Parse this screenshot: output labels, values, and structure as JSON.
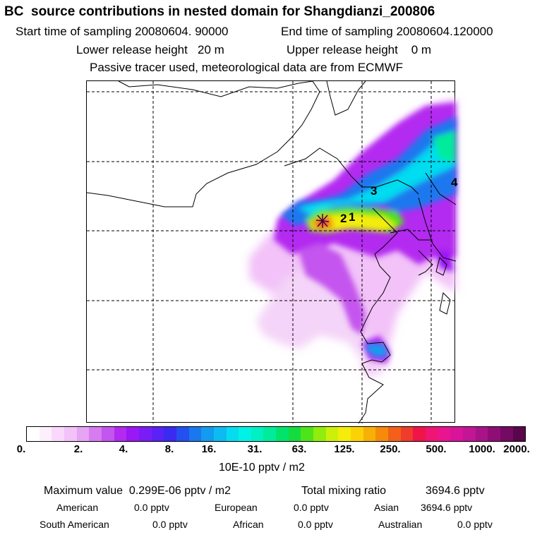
{
  "header": {
    "title": "BC  source contributions in nested domain for Shangdianzi_200806",
    "start_label": "Start time of sampling 20080604. 90000",
    "end_label": "End time of sampling 20080604.120000",
    "lower_label": "Lower release height   20 m",
    "upper_label": "Upper release height    0 m",
    "tracer_note": "Passive tracer used, meteorological data are from ECMWF"
  },
  "map": {
    "markers": [
      "2",
      "1",
      "3",
      "4"
    ]
  },
  "colorbar": {
    "ticks": [
      "0.",
      "2.",
      "4.",
      "8.",
      "16.",
      "31.",
      "63.",
      "125.",
      "250.",
      "500.",
      "1000.",
      "2000."
    ],
    "unit": "10E-10 pptv / m2",
    "colors": [
      "#ffffff",
      "#fdf0fd",
      "#f8d9fb",
      "#f2c2f8",
      "#e6a4f4",
      "#d67bf0",
      "#c455ee",
      "#b32af0",
      "#9c17f5",
      "#7a1cf6",
      "#5a22f4",
      "#3a2af2",
      "#2450f0",
      "#1a78ee",
      "#139bef",
      "#0cbbf2",
      "#05dcf0",
      "#00f2e6",
      "#00f0c4",
      "#00ec9a",
      "#00e46c",
      "#14dc3e",
      "#4ee41a",
      "#92ec0c",
      "#ccf00a",
      "#f4ec0a",
      "#fcd206",
      "#f8b006",
      "#f68a0a",
      "#f4601a",
      "#f03c2a",
      "#f01448",
      "#f01474",
      "#ea1490",
      "#d8149a",
      "#c21696",
      "#a81488",
      "#8e0e76",
      "#740a62",
      "#5a064c"
    ]
  },
  "chart_data": {
    "type": "heatmap",
    "title": "BC  source contributions in nested domain for Shangdianzi_200806",
    "receptor": "Shangdianzi",
    "color_levels": [
      0,
      2,
      4,
      8,
      16,
      31,
      63,
      125,
      250,
      500,
      1000,
      2000
    ],
    "color_unit": "10E-10 pptv / m2",
    "grid": true,
    "max_value": "0.299E-06 pptv / m2",
    "total_mixing_ratio": "3694.6 pptv",
    "regions": [
      {
        "name": "American",
        "value": "0.0 pptv"
      },
      {
        "name": "European",
        "value": "0.0 pptv"
      },
      {
        "name": "Asian",
        "value": "3694.6 pptv"
      },
      {
        "name": "South American",
        "value": "0.0 pptv"
      },
      {
        "name": "African",
        "value": "0.0 pptv"
      },
      {
        "name": "Australian",
        "value": "0.0 pptv"
      }
    ]
  },
  "footer": {
    "max_label": "Maximum value  0.299E-06 pptv / m2",
    "total_label": "Total mixing ratio",
    "total_value": "3694.6 pptv",
    "american_label": "American",
    "american_value": "0.0 pptv",
    "european_label": "European",
    "european_value": "0.0 pptv",
    "asian_label": "Asian",
    "asian_value": "3694.6 pptv",
    "south_american_label": "South American",
    "south_american_value": "0.0 pptv",
    "african_label": "African",
    "african_value": "0.0 pptv",
    "australian_label": "Australian",
    "australian_value": "0.0 pptv"
  }
}
